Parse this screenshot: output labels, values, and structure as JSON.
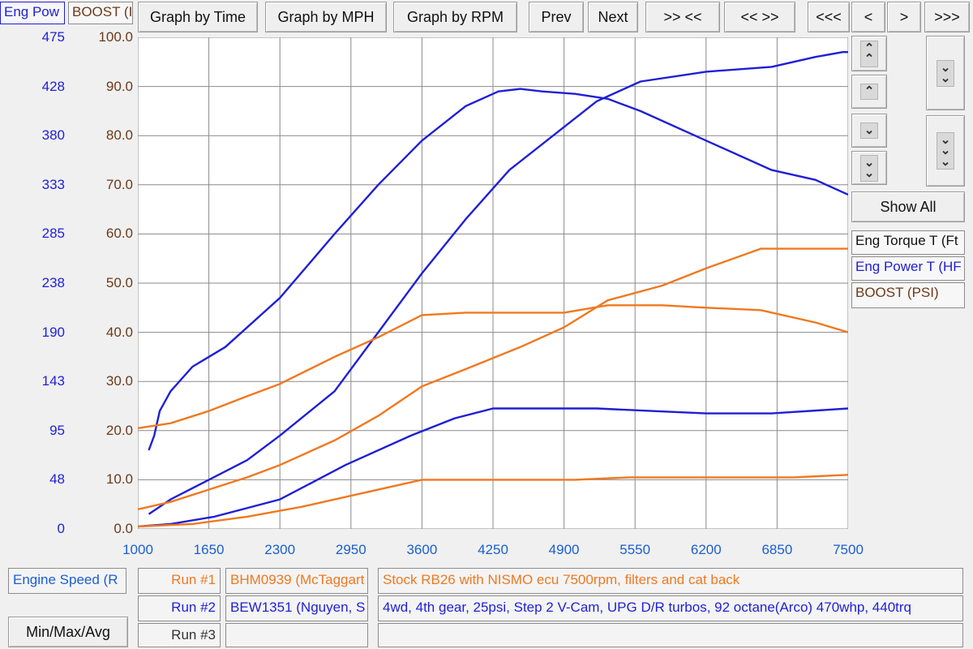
{
  "header": {
    "legend_power": "Eng Pow",
    "legend_boost": "BOOST (I"
  },
  "toolbar": {
    "time": "Graph by Time",
    "mph": "Graph by MPH",
    "rpm": "Graph by RPM",
    "prev": "Prev",
    "next": "Next",
    "zoom_in": ">> <<",
    "zoom_out": "<< >>",
    "first": "<<<",
    "back": "<",
    "fwd": ">",
    "last": ">>>"
  },
  "side": {
    "show_all": "Show All",
    "legend": [
      "Eng Torque T (Ft",
      "Eng Power T (HF",
      "BOOST (PSI)"
    ]
  },
  "axes": {
    "left_ticks": [
      "475",
      "428",
      "380",
      "333",
      "285",
      "238",
      "190",
      "143",
      "95",
      "48",
      "0"
    ],
    "right_ticks": [
      "100.0",
      "90.0",
      "80.0",
      "70.0",
      "60.0",
      "50.0",
      "40.0",
      "30.0",
      "20.0",
      "10.0",
      "0.0"
    ],
    "x_ticks": [
      "1000",
      "1650",
      "2300",
      "2950",
      "3600",
      "4250",
      "4900",
      "5550",
      "6200",
      "6850",
      "7500"
    ],
    "x_field": "Engine Speed (R"
  },
  "runs": [
    {
      "label": "Run #1",
      "id": "BHM0939 (McTaggart",
      "desc": "Stock RB26 with NISMO ecu 7500rpm, filters and cat back"
    },
    {
      "label": "Run #2",
      "id": "BEW1351 (Nguyen, S",
      "desc": "4wd, 4th gear, 25psi, Step 2 V-Cam, UPG D/R turbos, 92 octane(Arco) 470whp, 440trq"
    },
    {
      "label": "Run #3",
      "id": "",
      "desc": ""
    }
  ],
  "minmax": "Min/Max/Avg",
  "colors": {
    "blue": "#1f1fd6",
    "orange": "#f07820",
    "axis_blue": "#1f1fd6",
    "axis_brown": "#6b3a1a",
    "x_blue": "#1a5fd0"
  },
  "chart_data": {
    "type": "line",
    "xlabel": "Engine Speed (R",
    "xlim": [
      1000,
      7500
    ],
    "ylim_right": [
      0,
      100
    ],
    "ylim_left": [
      0,
      475
    ],
    "series": [
      {
        "name": "Eng Torque T (Ft",
        "run": "Run #2",
        "color": "#1f1fd6",
        "x": [
          1100,
          1150,
          1200,
          1300,
          1500,
          1800,
          2300,
          2800,
          3200,
          3600,
          4000,
          4300,
          4500,
          4700,
          5000,
          5300,
          5600,
          6200,
          6800,
          7200,
          7500
        ],
        "y": [
          16,
          19,
          24,
          28,
          33,
          37,
          47,
          60,
          70,
          79,
          86,
          89,
          89.5,
          89,
          88.5,
          87.5,
          85,
          79,
          73,
          71,
          68
        ]
      },
      {
        "name": "Eng Power T (HF",
        "run": "Run #2",
        "color": "#1f1fd6",
        "x": [
          1100,
          1300,
          1650,
          2000,
          2300,
          2800,
          3200,
          3600,
          4000,
          4400,
          4800,
          5200,
          5600,
          6200,
          6800,
          7200,
          7450,
          7500
        ],
        "y": [
          3,
          6,
          10,
          14,
          19,
          28,
          40,
          52,
          63,
          73,
          80,
          87,
          91,
          93,
          94,
          96,
          97,
          97
        ]
      },
      {
        "name": "BOOST (PSI)",
        "run": "Run #2",
        "color": "#1f1fd6",
        "x": [
          1000,
          1300,
          1700,
          2300,
          2900,
          3500,
          3900,
          4250,
          4600,
          5200,
          5700,
          6200,
          6800,
          7500
        ],
        "y": [
          0.5,
          1,
          2.5,
          6,
          13,
          19,
          22.5,
          24.5,
          24.5,
          24.5,
          24,
          23.5,
          23.5,
          24.5
        ]
      },
      {
        "name": "Eng Torque T (Ft",
        "run": "Run #1",
        "color": "#f07820",
        "x": [
          1000,
          1300,
          1650,
          2000,
          2300,
          2800,
          3200,
          3600,
          4000,
          4900,
          5300,
          5800,
          6200,
          6700,
          7200,
          7500
        ],
        "y": [
          20.5,
          21.5,
          24,
          27,
          29.5,
          35,
          39,
          43.5,
          44,
          44,
          45.5,
          45.5,
          45,
          44.5,
          42,
          40
        ]
      },
      {
        "name": "Eng Power T (HF",
        "run": "Run #1",
        "color": "#f07820",
        "x": [
          1000,
          1300,
          1650,
          2000,
          2300,
          2800,
          3200,
          3600,
          4000,
          4500,
          4900,
          5300,
          5800,
          6200,
          6700,
          7200,
          7500
        ],
        "y": [
          4,
          5.5,
          8,
          10.5,
          13,
          18,
          23,
          29,
          32.5,
          37,
          41,
          46.5,
          49.5,
          53,
          57,
          57,
          57
        ]
      },
      {
        "name": "BOOST (PSI)",
        "run": "Run #1",
        "color": "#f07820",
        "x": [
          1000,
          1500,
          2000,
          2500,
          3000,
          3600,
          4000,
          4500,
          5000,
          5500,
          6000,
          6500,
          7000,
          7500
        ],
        "y": [
          0.5,
          1,
          2.5,
          4.5,
          7,
          10,
          10,
          10,
          10,
          10.5,
          10.5,
          10.5,
          10.5,
          11
        ]
      }
    ]
  }
}
